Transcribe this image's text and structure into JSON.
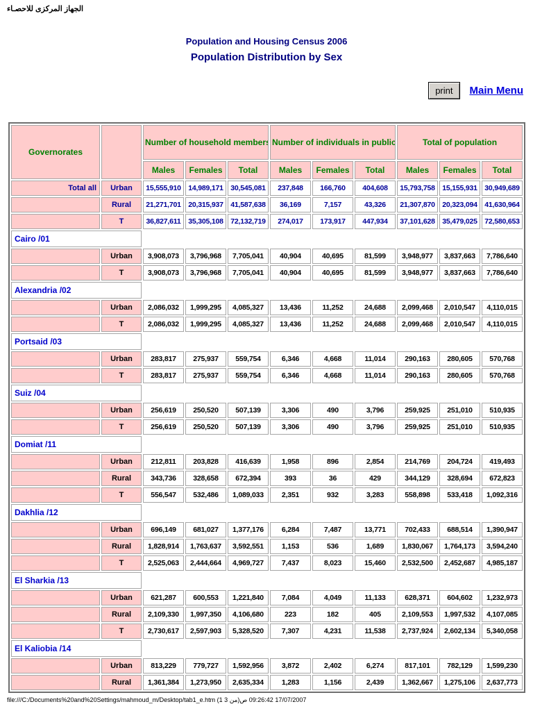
{
  "page": {
    "agency_arabic": "الجهاز المركزى للاحصـاء",
    "title1": "Population and Housing Census 2006",
    "title2": "Population Distribution by Sex",
    "print_label": "print",
    "main_menu_label": "Main Menu",
    "footer": "file:///C:/Documents%20and%20Settings/mahmoud_m/Desktop/tab1_e.htm (1 من 3)17/07/2007 09:26:42 ص"
  },
  "table": {
    "governorates_header": "Governorates",
    "col_groups": [
      "Number of household members",
      "Number of individuals in public housing",
      "Total of population"
    ],
    "sub_headers": [
      "Males",
      "Females",
      "Total"
    ],
    "sections": [
      {
        "name": "Total all",
        "type": "total",
        "rows": [
          {
            "label": "Urban",
            "values": [
              "15,555,910",
              "14,989,171",
              "30,545,081",
              "237,848",
              "166,760",
              "404,608",
              "15,793,758",
              "15,155,931",
              "30,949,689"
            ]
          },
          {
            "label": "Rural",
            "values": [
              "21,271,701",
              "20,315,937",
              "41,587,638",
              "36,169",
              "7,157",
              "43,326",
              "21,307,870",
              "20,323,094",
              "41,630,964"
            ]
          },
          {
            "label": "T",
            "values": [
              "36,827,611",
              "35,305,108",
              "72,132,719",
              "274,017",
              "173,917",
              "447,934",
              "37,101,628",
              "35,479,025",
              "72,580,653"
            ]
          }
        ]
      },
      {
        "name": "Cairo /01",
        "type": "governorate",
        "rows": [
          {
            "label": "Urban",
            "values": [
              "3,908,073",
              "3,796,968",
              "7,705,041",
              "40,904",
              "40,695",
              "81,599",
              "3,948,977",
              "3,837,663",
              "7,786,640"
            ]
          },
          {
            "label": "T",
            "values": [
              "3,908,073",
              "3,796,968",
              "7,705,041",
              "40,904",
              "40,695",
              "81,599",
              "3,948,977",
              "3,837,663",
              "7,786,640"
            ]
          }
        ]
      },
      {
        "name": "Alexandria /02",
        "type": "governorate",
        "rows": [
          {
            "label": "Urban",
            "values": [
              "2,086,032",
              "1,999,295",
              "4,085,327",
              "13,436",
              "11,252",
              "24,688",
              "2,099,468",
              "2,010,547",
              "4,110,015"
            ]
          },
          {
            "label": "T",
            "values": [
              "2,086,032",
              "1,999,295",
              "4,085,327",
              "13,436",
              "11,252",
              "24,688",
              "2,099,468",
              "2,010,547",
              "4,110,015"
            ]
          }
        ]
      },
      {
        "name": "Portsaid /03",
        "type": "governorate",
        "rows": [
          {
            "label": "Urban",
            "values": [
              "283,817",
              "275,937",
              "559,754",
              "6,346",
              "4,668",
              "11,014",
              "290,163",
              "280,605",
              "570,768"
            ]
          },
          {
            "label": "T",
            "values": [
              "283,817",
              "275,937",
              "559,754",
              "6,346",
              "4,668",
              "11,014",
              "290,163",
              "280,605",
              "570,768"
            ]
          }
        ]
      },
      {
        "name": "Suiz /04",
        "type": "governorate",
        "rows": [
          {
            "label": "Urban",
            "values": [
              "256,619",
              "250,520",
              "507,139",
              "3,306",
              "490",
              "3,796",
              "259,925",
              "251,010",
              "510,935"
            ]
          },
          {
            "label": "T",
            "values": [
              "256,619",
              "250,520",
              "507,139",
              "3,306",
              "490",
              "3,796",
              "259,925",
              "251,010",
              "510,935"
            ]
          }
        ]
      },
      {
        "name": "Domiat /11",
        "type": "governorate",
        "rows": [
          {
            "label": "Urban",
            "values": [
              "212,811",
              "203,828",
              "416,639",
              "1,958",
              "896",
              "2,854",
              "214,769",
              "204,724",
              "419,493"
            ]
          },
          {
            "label": "Rural",
            "values": [
              "343,736",
              "328,658",
              "672,394",
              "393",
              "36",
              "429",
              "344,129",
              "328,694",
              "672,823"
            ]
          },
          {
            "label": "T",
            "values": [
              "556,547",
              "532,486",
              "1,089,033",
              "2,351",
              "932",
              "3,283",
              "558,898",
              "533,418",
              "1,092,316"
            ]
          }
        ]
      },
      {
        "name": "Dakhlia /12",
        "type": "governorate",
        "rows": [
          {
            "label": "Urban",
            "values": [
              "696,149",
              "681,027",
              "1,377,176",
              "6,284",
              "7,487",
              "13,771",
              "702,433",
              "688,514",
              "1,390,947"
            ]
          },
          {
            "label": "Rural",
            "values": [
              "1,828,914",
              "1,763,637",
              "3,592,551",
              "1,153",
              "536",
              "1,689",
              "1,830,067",
              "1,764,173",
              "3,594,240"
            ]
          },
          {
            "label": "T",
            "values": [
              "2,525,063",
              "2,444,664",
              "4,969,727",
              "7,437",
              "8,023",
              "15,460",
              "2,532,500",
              "2,452,687",
              "4,985,187"
            ]
          }
        ]
      },
      {
        "name": "El Sharkia /13",
        "type": "governorate",
        "rows": [
          {
            "label": "Urban",
            "values": [
              "621,287",
              "600,553",
              "1,221,840",
              "7,084",
              "4,049",
              "11,133",
              "628,371",
              "604,602",
              "1,232,973"
            ]
          },
          {
            "label": "Rural",
            "values": [
              "2,109,330",
              "1,997,350",
              "4,106,680",
              "223",
              "182",
              "405",
              "2,109,553",
              "1,997,532",
              "4,107,085"
            ]
          },
          {
            "label": "T",
            "values": [
              "2,730,617",
              "2,597,903",
              "5,328,520",
              "7,307",
              "4,231",
              "11,538",
              "2,737,924",
              "2,602,134",
              "5,340,058"
            ]
          }
        ]
      },
      {
        "name": "El Kaliobia /14",
        "type": "governorate",
        "rows": [
          {
            "label": "Urban",
            "values": [
              "813,229",
              "779,727",
              "1,592,956",
              "3,872",
              "2,402",
              "6,274",
              "817,101",
              "782,129",
              "1,599,230"
            ]
          },
          {
            "label": "Rural",
            "values": [
              "1,361,384",
              "1,273,950",
              "2,635,334",
              "1,283",
              "1,156",
              "2,439",
              "1,362,667",
              "1,275,106",
              "2,637,773"
            ]
          }
        ]
      }
    ]
  }
}
